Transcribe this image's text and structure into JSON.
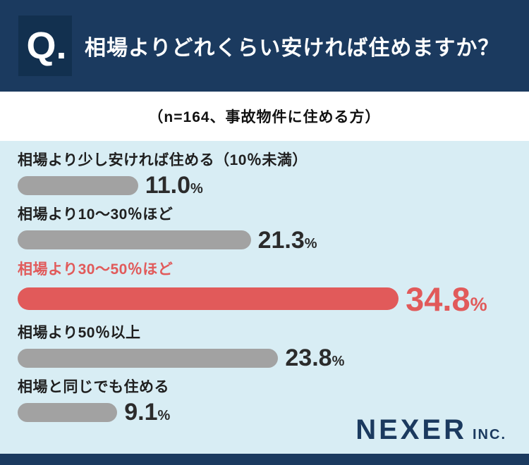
{
  "header": {
    "q_label": "Q.",
    "title": "相場よりどれくらい安ければ住めますか？"
  },
  "subtitle": "（n=164、事故物件に住める方）",
  "chart_data": {
    "type": "bar",
    "orientation": "horizontal",
    "title": "相場よりどれくらい安ければ住めますか？",
    "note": "（n=164、事故物件に住める方）",
    "unit": "%",
    "categories": [
      "相場より少し安ければ住める（10％未満）",
      "相場より10〜30％ほど",
      "相場より30〜50％ほど",
      "相場より50％以上",
      "相場と同じでも住める"
    ],
    "values": [
      11.0,
      21.3,
      34.8,
      23.8,
      9.1
    ],
    "value_labels": [
      "11.0",
      "21.3",
      "34.8",
      "23.8",
      "9.1"
    ],
    "highlight_index": 2,
    "xlim": [
      0,
      40
    ],
    "grid": false,
    "legend": false
  },
  "brand": {
    "name": "NEXER",
    "suffix": "INC."
  },
  "colors": {
    "navy": "#1b3a5f",
    "q_box": "#12304f",
    "light_blue": "#d8edf4",
    "bar_gray": "#a2a2a2",
    "accent_red": "#e15a5a",
    "text_dark": "#1f1f1f"
  }
}
